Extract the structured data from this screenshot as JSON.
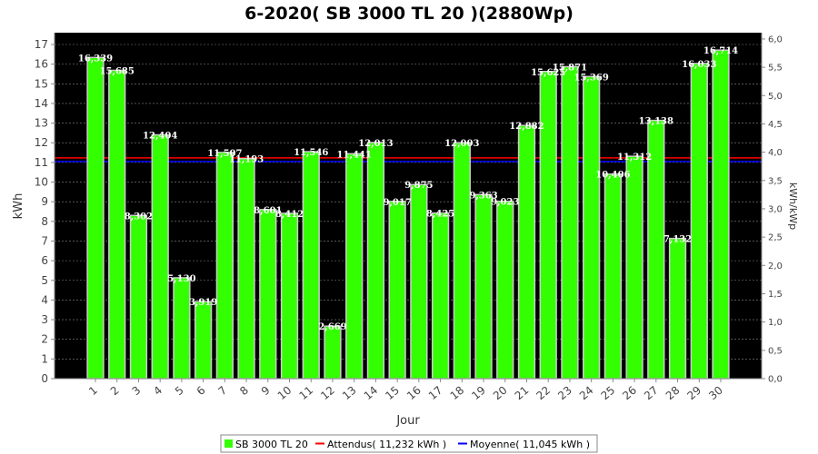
{
  "colors": {
    "plot_background": "#000000",
    "bar": "#33ff00",
    "bar_edge": "#cccccc",
    "attendus": "#ff0000",
    "moyenne": "#0000ff",
    "grid": "#888888"
  },
  "chart_data": {
    "type": "bar",
    "title": "6-2020( SB 3000 TL 20 )(2880Wp)",
    "xlabel": "Jour",
    "ylabel": "kWh",
    "ylabel_right": "kWh/kWp",
    "categories": [
      "1",
      "2",
      "3",
      "4",
      "5",
      "6",
      "7",
      "8",
      "9",
      "10",
      "11",
      "12",
      "13",
      "14",
      "15",
      "16",
      "17",
      "18",
      "19",
      "20",
      "21",
      "22",
      "23",
      "24",
      "25",
      "26",
      "27",
      "28",
      "29",
      "30"
    ],
    "values": [
      16.339,
      15.685,
      8.302,
      12.404,
      5.13,
      3.919,
      11.507,
      11.193,
      8.601,
      8.412,
      11.546,
      2.669,
      11.441,
      12.013,
      9.017,
      9.875,
      8.425,
      12.003,
      9.363,
      9.023,
      12.882,
      15.625,
      15.871,
      15.369,
      10.406,
      11.312,
      13.138,
      7.132,
      16.033,
      16.714
    ],
    "data_labels": [
      "16,339",
      "15,685",
      "8,302",
      "12,404",
      "5,130",
      "3,919",
      "11,507",
      "11,193",
      "8,601",
      "8,412",
      "11,546",
      "2,669",
      "11,441",
      "12,013",
      "9,017",
      "9,875",
      "8,425",
      "12,003",
      "9,363",
      "9,023",
      "12,882",
      "15,625",
      "15,871",
      "15,369",
      "10,406",
      "11,312",
      "13,138",
      "7,132",
      "16,033",
      "16,714"
    ],
    "ylim": [
      0,
      17.6
    ],
    "yticks": [
      "0",
      "1",
      "2",
      "3",
      "4",
      "5",
      "6",
      "7",
      "8",
      "9",
      "10",
      "11",
      "12",
      "13",
      "14",
      "15",
      "16",
      "17"
    ],
    "y2lim": [
      0,
      6.111
    ],
    "y2ticks": [
      "0,0",
      "0,5",
      "1,0",
      "1,5",
      "2,0",
      "2,5",
      "3,0",
      "3,5",
      "4,0",
      "4,5",
      "5,0",
      "5,5",
      "6,0"
    ],
    "reference_lines": [
      {
        "name": "Attendus",
        "value": 11.232
      },
      {
        "name": "Moyenne",
        "value": 11.045
      }
    ],
    "grid": true,
    "legend": {
      "position": "bottom",
      "entries": [
        {
          "name": "SB 3000 TL 20",
          "type": "bar"
        },
        {
          "name": "Attendus( 11,232 kWh )",
          "type": "line"
        },
        {
          "name": "Moyenne( 11,045 kWh )",
          "type": "line"
        }
      ]
    }
  }
}
